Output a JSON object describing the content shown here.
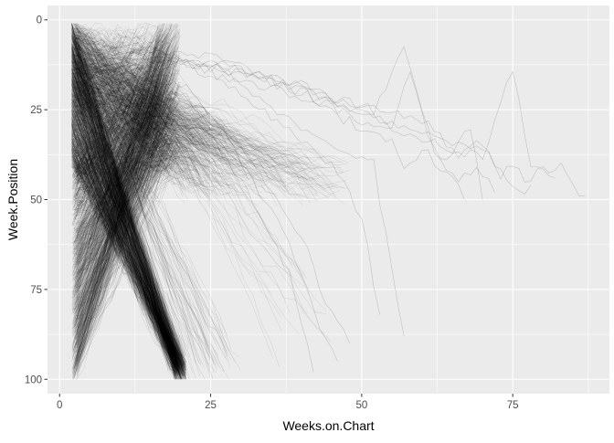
{
  "chart_data": {
    "type": "line",
    "title": "",
    "xlabel": "Weeks.on.Chart",
    "ylabel": "Week.Position",
    "xlim": [
      -2,
      91
    ],
    "ylim": [
      0,
      100
    ],
    "y_reversed": true,
    "x_ticks": [
      0,
      25,
      50,
      75
    ],
    "x_tick_labels": [
      "0",
      "25",
      "50",
      "75"
    ],
    "y_ticks": [
      0,
      25,
      50,
      75,
      100
    ],
    "y_tick_labels": [
      "0",
      "25",
      "50",
      "75",
      "100"
    ],
    "grid": true,
    "legend": "none",
    "line_color": "#000000",
    "line_alpha": 0.12,
    "panel_background": "#ebebeb",
    "grid_color": "#ffffff",
    "bundles": [
      {
        "count": 900,
        "start_x": [
          2,
          3
        ],
        "start_y": [
          40,
          100
        ],
        "end_x": [
          16,
          20
        ],
        "end_y": [
          1,
          40
        ],
        "steps": 14
      },
      {
        "count": 700,
        "start_x": [
          2,
          2
        ],
        "start_y": [
          1,
          40
        ],
        "end_x": [
          19,
          21
        ],
        "end_y": [
          95,
          100
        ],
        "steps": 16
      },
      {
        "count": 500,
        "start_x": [
          2,
          3
        ],
        "start_y": [
          1,
          45
        ],
        "end_x": [
          10,
          20
        ],
        "end_y": [
          1,
          45
        ],
        "steps": 12
      },
      {
        "count": 260,
        "start_x": [
          2,
          3
        ],
        "start_y": [
          1,
          25
        ],
        "end_x": [
          20,
          30
        ],
        "end_y": [
          30,
          50
        ],
        "steps": 16
      },
      {
        "count": 120,
        "start_x": [
          2,
          3
        ],
        "start_y": [
          1,
          20
        ],
        "end_x": [
          30,
          48
        ],
        "end_y": [
          40,
          50
        ],
        "steps": 18
      },
      {
        "count": 60,
        "start_x": [
          2,
          3
        ],
        "start_y": [
          1,
          15
        ],
        "end_x": [
          20,
          30
        ],
        "end_y": [
          90,
          100
        ],
        "steps": 14
      },
      {
        "count": 18,
        "start_x": [
          8,
          15
        ],
        "start_y": [
          1,
          20
        ],
        "end_x": [
          35,
          45
        ],
        "end_y": [
          70,
          100
        ],
        "steps": 16
      }
    ],
    "long_runs": [
      {
        "x": [
          2,
          10,
          20,
          30,
          40,
          50,
          55,
          58,
          61,
          64,
          68,
          70
        ],
        "y": [
          12,
          8,
          10,
          14,
          20,
          28,
          30,
          15,
          33,
          40,
          30,
          50
        ]
      },
      {
        "x": [
          2,
          10,
          20,
          30,
          40,
          50,
          55,
          57,
          60,
          65,
          67
        ],
        "y": [
          14,
          10,
          12,
          16,
          22,
          30,
          34,
          42,
          36,
          44,
          50
        ]
      },
      {
        "x": [
          2,
          12,
          25,
          35,
          45,
          52,
          57,
          62,
          66,
          69,
          72
        ],
        "y": [
          10,
          7,
          10,
          15,
          22,
          25,
          8,
          36,
          45,
          40,
          48
        ]
      },
      {
        "x": [
          2,
          15,
          30,
          45,
          55,
          62,
          66,
          70,
          73,
          75,
          77,
          80,
          83,
          85,
          87
        ],
        "y": [
          15,
          10,
          14,
          22,
          26,
          30,
          38,
          34,
          44,
          40,
          45,
          42,
          40,
          47,
          49
        ]
      },
      {
        "x": [
          2,
          20,
          40,
          55,
          65,
          70,
          75,
          78,
          82
        ],
        "y": [
          16,
          12,
          18,
          30,
          36,
          38,
          14,
          40,
          44
        ]
      },
      {
        "x": [
          2,
          15,
          30,
          40,
          47,
          52,
          55,
          57
        ],
        "y": [
          12,
          8,
          18,
          30,
          36,
          40,
          70,
          88
        ]
      },
      {
        "x": [
          2,
          12,
          25,
          38,
          45,
          50,
          53
        ],
        "y": [
          12,
          10,
          15,
          30,
          40,
          55,
          82
        ]
      },
      {
        "x": [
          2,
          10,
          22,
          30,
          36,
          40,
          43,
          46
        ],
        "y": [
          15,
          12,
          20,
          40,
          55,
          70,
          85,
          95
        ]
      },
      {
        "x": [
          2,
          12,
          24,
          32,
          38,
          42
        ],
        "y": [
          18,
          12,
          30,
          50,
          70,
          98
        ]
      },
      {
        "x": [
          2,
          14,
          26,
          34,
          40,
          44,
          48
        ],
        "y": [
          16,
          12,
          28,
          45,
          60,
          78,
          90
        ]
      },
      {
        "x": [
          2,
          18,
          36,
          50,
          60,
          70,
          76,
          78
        ],
        "y": [
          14,
          10,
          18,
          26,
          32,
          36,
          48,
          46
        ]
      }
    ]
  }
}
